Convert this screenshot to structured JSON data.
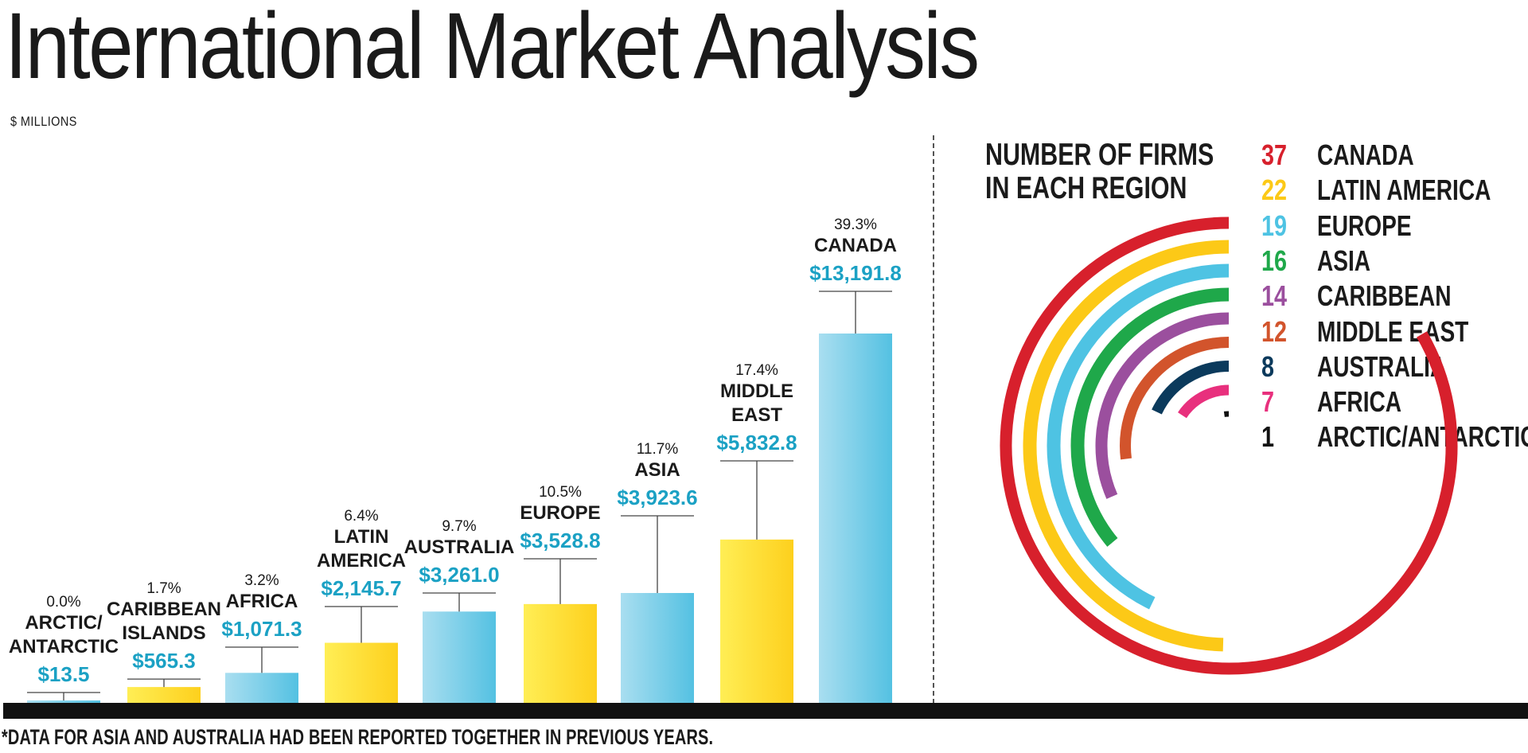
{
  "title": "International Market Analysis",
  "units_label": "$ MILLIONS",
  "footnote": "*DATA FOR ASIA AND AUSTRALIA HAD BEEN REPORTED TOGETHER IN PREVIOUS YEARS.",
  "firms_title": [
    "NUMBER OF FIRMS",
    "IN EACH REGION"
  ],
  "colors": {
    "blue_bar_light": "#a9def0",
    "blue_bar_dark": "#54c1e2",
    "yellow_bar_light": "#ffee55",
    "yellow_bar_dark": "#fdd01d",
    "value_text": "#1ba1c4",
    "baseline": "#111111"
  },
  "chart_data": [
    {
      "type": "bar",
      "ylabel": "$ MILLIONS",
      "categories": [
        "ARCTIC/ ANTARCTIC",
        "CARIBBEAN ISLANDS",
        "AFRICA",
        "LATIN AMERICA",
        "AUSTRALIA",
        "EUROPE",
        "ASIA",
        "MIDDLE EAST",
        "CANADA"
      ],
      "bars": [
        {
          "name_lines": [
            "ARCTIC/",
            "ANTARCTIC"
          ],
          "value": 13.5,
          "value_label": "$13.5",
          "share_label": "0.0%",
          "color": "blue"
        },
        {
          "name_lines": [
            "CARIBBEAN",
            "ISLANDS"
          ],
          "value": 565.3,
          "value_label": "$565.3",
          "share_label": "1.7%",
          "color": "yellow"
        },
        {
          "name_lines": [
            "AFRICA"
          ],
          "value": 1071.3,
          "value_label": "$1,071.3",
          "share_label": "3.2%",
          "color": "blue"
        },
        {
          "name_lines": [
            "LATIN",
            "AMERICA"
          ],
          "value": 2145.7,
          "value_label": "$2,145.7",
          "share_label": "6.4%",
          "color": "yellow"
        },
        {
          "name_lines": [
            "AUSTRALIA"
          ],
          "value": 3261.0,
          "value_label": "$3,261.0",
          "share_label": "9.7%",
          "color": "blue"
        },
        {
          "name_lines": [
            "EUROPE"
          ],
          "value": 3528.8,
          "value_label": "$3,528.8",
          "share_label": "10.5%",
          "color": "yellow"
        },
        {
          "name_lines": [
            "ASIA"
          ],
          "value": 3923.6,
          "value_label": "$3,923.6",
          "share_label": "11.7%",
          "color": "blue"
        },
        {
          "name_lines": [
            "MIDDLE",
            "EAST"
          ],
          "value": 5832.8,
          "value_label": "$5,832.8",
          "share_label": "17.4%",
          "color": "yellow"
        },
        {
          "name_lines": [
            "CANADA"
          ],
          "value": 13191.8,
          "value_label": "$13,191.8",
          "share_label": "39.3%",
          "color": "blue"
        }
      ],
      "ylim": [
        0,
        13191.8
      ],
      "grid": false
    },
    {
      "type": "radial-bar",
      "title": "NUMBER OF FIRMS IN EACH REGION",
      "max_value": 37,
      "series": [
        {
          "count": 37,
          "region": "CANADA",
          "color": "#d7202c"
        },
        {
          "count": 22,
          "region": "LATIN AMERICA",
          "color": "#fcc917"
        },
        {
          "count": 19,
          "region": "EUROPE",
          "color": "#4ec3e3"
        },
        {
          "count": 16,
          "region": "ASIA",
          "color": "#1fa84a"
        },
        {
          "count": 14,
          "region": "CARIBBEAN",
          "color": "#9b4f9e"
        },
        {
          "count": 12,
          "region": "MIDDLE EAST",
          "color": "#d2542c"
        },
        {
          "count": 8,
          "region": "AUSTRALIA",
          "color": "#0b3a5c"
        },
        {
          "count": 7,
          "region": "AFRICA",
          "color": "#e8307d"
        },
        {
          "count": 1,
          "region": "ARCTIC/ANTARCTIC",
          "color": "#111111"
        }
      ]
    }
  ]
}
